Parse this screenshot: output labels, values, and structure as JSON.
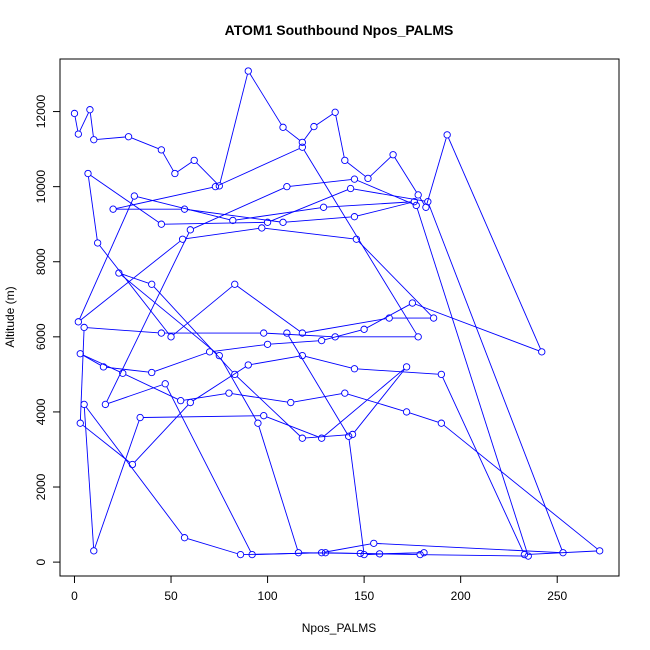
{
  "chart_data": {
    "type": "line",
    "title": "ATOM1 Southbound Npos_PALMS",
    "xlabel": "Npos_PALMS",
    "ylabel": "Altitude (m)",
    "xlim": [
      -7.5,
      282
    ],
    "ylim": [
      -370,
      13400
    ],
    "xticks": [
      0,
      50,
      100,
      150,
      200,
      250
    ],
    "yticks": [
      0,
      2000,
      4000,
      6000,
      8000,
      10000,
      12000
    ],
    "marker": "open-circle",
    "line_style": "points-and-lines",
    "grid": false,
    "legend": "none",
    "color": "#0000ff",
    "series": [
      {
        "x": [
          0,
          2,
          8,
          10,
          28,
          45,
          52,
          62,
          75,
          90,
          108,
          118,
          124,
          135,
          140,
          152,
          165,
          178,
          182,
          193,
          242,
          175,
          150,
          128,
          100,
          70,
          40,
          15,
          3,
          25,
          55,
          80,
          112,
          140,
          172,
          190,
          272,
          233,
          190,
          145,
          118,
          90,
          60,
          30,
          3,
          5,
          45,
          98,
          135,
          178,
          118,
          73,
          20,
          57,
          108,
          145,
          176,
          129,
          82,
          31,
          2,
          56,
          97,
          146,
          186,
          163,
          118,
          83,
          50,
          12,
          7,
          45,
          100,
          143,
          183,
          253,
          155,
          128,
          92,
          47,
          16,
          60,
          110,
          145,
          177,
          235,
          179,
          148,
          116,
          95,
          75,
          23,
          40,
          83,
          118,
          144,
          172,
          128,
          98,
          34,
          10,
          5,
          57,
          86,
          130,
          158,
          181,
          150,
          142,
          110
        ],
        "y": [
          11950,
          11400,
          12050,
          11250,
          11330,
          10980,
          10350,
          10700,
          10020,
          13080,
          11580,
          11180,
          11600,
          11980,
          10700,
          10220,
          10850,
          9780,
          9450,
          11380,
          5600,
          6900,
          6200,
          5900,
          5800,
          5600,
          5050,
          5200,
          5550,
          5030,
          4300,
          4500,
          4250,
          4500,
          4000,
          3700,
          300,
          200,
          5000,
          5150,
          5500,
          5250,
          4250,
          2600,
          3700,
          6250,
          6100,
          6100,
          6000,
          6000,
          11050,
          10000,
          9400,
          9400,
          9050,
          9200,
          9600,
          9450,
          9100,
          9750,
          6400,
          8600,
          8900,
          8600,
          6500,
          6500,
          6100,
          7400,
          6000,
          8500,
          10350,
          9000,
          9050,
          9950,
          9600,
          250,
          500,
          250,
          200,
          4750,
          4200,
          8850,
          10000,
          10200,
          9500,
          160,
          200,
          230,
          250,
          3700,
          5500,
          7700,
          7400,
          5000,
          3300,
          3400,
          5200,
          3300,
          3900,
          3850,
          300,
          4200,
          650,
          200,
          250,
          220,
          250,
          200,
          3350,
          6100
        ]
      }
    ]
  }
}
